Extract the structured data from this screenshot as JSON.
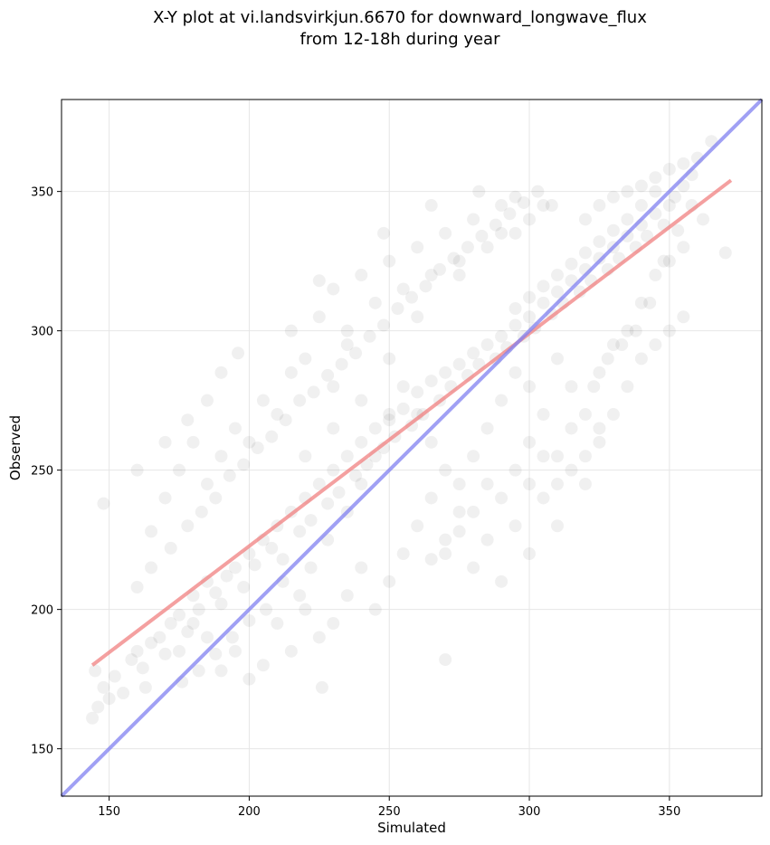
{
  "chart_data": {
    "type": "scatter",
    "title": "X-Y plot at vi.landsvirkjun.6670 for downward_longwave_flux",
    "subtitle": "from 12-18h during year",
    "xlabel": "Simulated",
    "ylabel": "Observed",
    "xlim": [
      133,
      383
    ],
    "ylim": [
      133,
      383
    ],
    "x_ticks": [
      150,
      200,
      250,
      300,
      350
    ],
    "y_ticks": [
      150,
      200,
      250,
      300,
      350
    ],
    "grid": true,
    "point_color": "#000000",
    "point_opacity": 0.06,
    "points": [
      [
        144,
        161
      ],
      [
        146,
        165
      ],
      [
        148,
        172
      ],
      [
        150,
        168
      ],
      [
        145,
        178
      ],
      [
        152,
        176
      ],
      [
        155,
        170
      ],
      [
        158,
        182
      ],
      [
        160,
        185
      ],
      [
        162,
        179
      ],
      [
        165,
        188
      ],
      [
        168,
        190
      ],
      [
        163,
        172
      ],
      [
        170,
        184
      ],
      [
        172,
        195
      ],
      [
        175,
        198
      ],
      [
        178,
        192
      ],
      [
        180,
        205
      ],
      [
        182,
        200
      ],
      [
        185,
        210
      ],
      [
        188,
        206
      ],
      [
        190,
        202
      ],
      [
        192,
        212
      ],
      [
        195,
        215
      ],
      [
        198,
        208
      ],
      [
        200,
        220
      ],
      [
        202,
        216
      ],
      [
        205,
        225
      ],
      [
        208,
        222
      ],
      [
        210,
        230
      ],
      [
        212,
        218
      ],
      [
        215,
        235
      ],
      [
        218,
        228
      ],
      [
        220,
        240
      ],
      [
        222,
        232
      ],
      [
        225,
        245
      ],
      [
        228,
        238
      ],
      [
        230,
        250
      ],
      [
        232,
        242
      ],
      [
        235,
        255
      ],
      [
        238,
        248
      ],
      [
        240,
        260
      ],
      [
        242,
        252
      ],
      [
        245,
        265
      ],
      [
        248,
        258
      ],
      [
        250,
        268
      ],
      [
        252,
        262
      ],
      [
        255,
        272
      ],
      [
        258,
        266
      ],
      [
        260,
        278
      ],
      [
        262,
        270
      ],
      [
        265,
        282
      ],
      [
        268,
        275
      ],
      [
        270,
        285
      ],
      [
        272,
        280
      ],
      [
        275,
        288
      ],
      [
        278,
        284
      ],
      [
        280,
        292
      ],
      [
        282,
        288
      ],
      [
        285,
        295
      ],
      [
        288,
        290
      ],
      [
        290,
        298
      ],
      [
        292,
        294
      ],
      [
        295,
        302
      ],
      [
        298,
        298
      ],
      [
        300,
        305
      ],
      [
        302,
        301
      ],
      [
        305,
        310
      ],
      [
        308,
        306
      ],
      [
        310,
        314
      ],
      [
        312,
        310
      ],
      [
        315,
        318
      ],
      [
        318,
        314
      ],
      [
        320,
        322
      ],
      [
        322,
        318
      ],
      [
        325,
        326
      ],
      [
        328,
        322
      ],
      [
        330,
        330
      ],
      [
        332,
        326
      ],
      [
        335,
        334
      ],
      [
        338,
        330
      ],
      [
        340,
        338
      ],
      [
        342,
        334
      ],
      [
        345,
        342
      ],
      [
        348,
        338
      ],
      [
        350,
        345
      ],
      [
        352,
        348
      ],
      [
        355,
        352
      ],
      [
        358,
        356
      ],
      [
        345,
        350
      ],
      [
        340,
        345
      ],
      [
        335,
        340
      ],
      [
        330,
        336
      ],
      [
        325,
        332
      ],
      [
        320,
        328
      ],
      [
        315,
        324
      ],
      [
        310,
        320
      ],
      [
        305,
        316
      ],
      [
        300,
        312
      ],
      [
        295,
        308
      ],
      [
        220,
        290
      ],
      [
        225,
        305
      ],
      [
        230,
        315
      ],
      [
        235,
        300
      ],
      [
        240,
        320
      ],
      [
        245,
        310
      ],
      [
        250,
        325
      ],
      [
        255,
        315
      ],
      [
        260,
        330
      ],
      [
        265,
        320
      ],
      [
        270,
        335
      ],
      [
        275,
        325
      ],
      [
        280,
        340
      ],
      [
        285,
        330
      ],
      [
        290,
        345
      ],
      [
        295,
        335
      ],
      [
        300,
        340
      ],
      [
        305,
        345
      ],
      [
        230,
        280
      ],
      [
        235,
        295
      ],
      [
        210,
        270
      ],
      [
        215,
        285
      ],
      [
        200,
        260
      ],
      [
        205,
        275
      ],
      [
        190,
        255
      ],
      [
        195,
        265
      ],
      [
        185,
        245
      ],
      [
        180,
        260
      ],
      [
        175,
        250
      ],
      [
        170,
        240
      ],
      [
        260,
        230
      ],
      [
        265,
        240
      ],
      [
        270,
        220
      ],
      [
        275,
        235
      ],
      [
        280,
        215
      ],
      [
        285,
        225
      ],
      [
        290,
        210
      ],
      [
        295,
        230
      ],
      [
        300,
        220
      ],
      [
        305,
        240
      ],
      [
        310,
        230
      ],
      [
        315,
        250
      ],
      [
        320,
        245
      ],
      [
        325,
        260
      ],
      [
        330,
        270
      ],
      [
        335,
        280
      ],
      [
        340,
        290
      ],
      [
        345,
        295
      ],
      [
        350,
        300
      ],
      [
        355,
        305
      ],
      [
        250,
        210
      ],
      [
        255,
        220
      ],
      [
        245,
        200
      ],
      [
        240,
        215
      ],
      [
        235,
        205
      ],
      [
        230,
        195
      ],
      [
        225,
        190
      ],
      [
        220,
        200
      ],
      [
        215,
        185
      ],
      [
        210,
        195
      ],
      [
        205,
        180
      ],
      [
        200,
        175
      ],
      [
        195,
        185
      ],
      [
        190,
        178
      ],
      [
        185,
        190
      ],
      [
        180,
        195
      ],
      [
        175,
        185
      ],
      [
        226,
        172
      ],
      [
        270,
        182
      ],
      [
        148,
        238
      ],
      [
        165,
        228
      ],
      [
        160,
        250
      ],
      [
        170,
        260
      ],
      [
        178,
        268
      ],
      [
        185,
        275
      ],
      [
        190,
        285
      ],
      [
        196,
        292
      ],
      [
        215,
        300
      ],
      [
        225,
        318
      ],
      [
        248,
        335
      ],
      [
        265,
        345
      ],
      [
        282,
        350
      ],
      [
        295,
        348
      ],
      [
        290,
        335
      ],
      [
        275,
        320
      ],
      [
        260,
        305
      ],
      [
        250,
        290
      ],
      [
        240,
        275
      ],
      [
        230,
        265
      ],
      [
        220,
        255
      ],
      [
        310,
        290
      ],
      [
        315,
        280
      ],
      [
        320,
        270
      ],
      [
        325,
        285
      ],
      [
        330,
        295
      ],
      [
        335,
        300
      ],
      [
        340,
        310
      ],
      [
        345,
        320
      ],
      [
        350,
        325
      ],
      [
        355,
        330
      ],
      [
        320,
        340
      ],
      [
        325,
        345
      ],
      [
        330,
        348
      ],
      [
        335,
        350
      ],
      [
        340,
        352
      ],
      [
        345,
        355
      ],
      [
        350,
        358
      ],
      [
        355,
        360
      ],
      [
        360,
        362
      ],
      [
        365,
        368
      ],
      [
        300,
        260
      ],
      [
        305,
        270
      ],
      [
        310,
        255
      ],
      [
        315,
        265
      ],
      [
        320,
        255
      ],
      [
        325,
        265
      ],
      [
        300,
        280
      ],
      [
        295,
        285
      ],
      [
        290,
        275
      ],
      [
        285,
        265
      ],
      [
        280,
        255
      ],
      [
        275,
        245
      ],
      [
        270,
        250
      ],
      [
        265,
        260
      ],
      [
        260,
        270
      ],
      [
        255,
        280
      ],
      [
        250,
        270
      ],
      [
        245,
        255
      ],
      [
        240,
        245
      ],
      [
        235,
        235
      ],
      [
        228,
        225
      ],
      [
        222,
        215
      ],
      [
        218,
        205
      ],
      [
        212,
        210
      ],
      [
        206,
        200
      ],
      [
        200,
        196
      ],
      [
        194,
        190
      ],
      [
        188,
        184
      ],
      [
        182,
        178
      ],
      [
        176,
        174
      ],
      [
        370,
        328
      ],
      [
        362,
        340
      ],
      [
        358,
        345
      ],
      [
        353,
        336
      ],
      [
        348,
        325
      ],
      [
        343,
        310
      ],
      [
        338,
        300
      ],
      [
        333,
        295
      ],
      [
        328,
        290
      ],
      [
        323,
        280
      ],
      [
        160,
        208
      ],
      [
        165,
        215
      ],
      [
        172,
        222
      ],
      [
        178,
        230
      ],
      [
        183,
        235
      ],
      [
        188,
        240
      ],
      [
        193,
        248
      ],
      [
        198,
        252
      ],
      [
        203,
        258
      ],
      [
        208,
        262
      ],
      [
        213,
        268
      ],
      [
        218,
        275
      ],
      [
        223,
        278
      ],
      [
        228,
        284
      ],
      [
        233,
        288
      ],
      [
        238,
        292
      ],
      [
        243,
        298
      ],
      [
        248,
        302
      ],
      [
        253,
        308
      ],
      [
        258,
        312
      ],
      [
        263,
        316
      ],
      [
        268,
        322
      ],
      [
        273,
        326
      ],
      [
        278,
        330
      ],
      [
        283,
        334
      ],
      [
        288,
        338
      ],
      [
        293,
        342
      ],
      [
        298,
        346
      ],
      [
        303,
        350
      ],
      [
        308,
        345
      ],
      [
        290,
        240
      ],
      [
        295,
        250
      ],
      [
        300,
        245
      ],
      [
        305,
        255
      ],
      [
        310,
        245
      ],
      [
        285,
        245
      ],
      [
        280,
        235
      ],
      [
        275,
        228
      ],
      [
        270,
        225
      ],
      [
        265,
        218
      ]
    ],
    "series": [
      {
        "values": [
          [
            144,
            180
          ],
          [
            372,
            354
          ]
        ],
        "color": "#f08080"
      },
      {
        "values": [
          [
            133,
            133
          ],
          [
            383,
            383
          ]
        ],
        "color": "#8080f0"
      }
    ]
  }
}
